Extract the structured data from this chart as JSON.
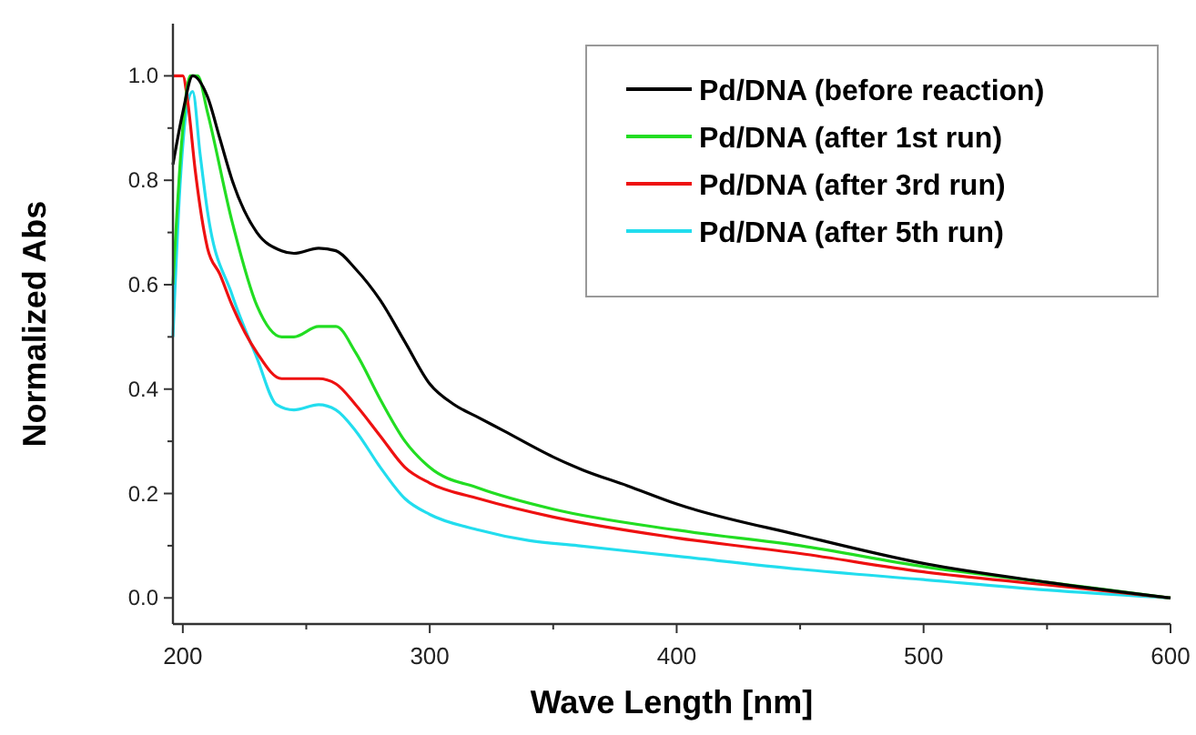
{
  "chart_data": {
    "type": "line",
    "xlabel": "Wave Length [nm]",
    "ylabel": "Normalized Abs",
    "xlim": [
      196,
      600
    ],
    "ylim": [
      -0.05,
      1.1
    ],
    "xticks": [
      200,
      {
        "value": 250,
        "label": null
      },
      300,
      {
        "value": 350,
        "label": null
      },
      400,
      {
        "value": 450,
        "label": null
      },
      500,
      {
        "value": 550,
        "label": null
      },
      600
    ],
    "yticks": [
      {
        "value": 0,
        "label": "0.0"
      },
      {
        "value": 0.1,
        "label": null
      },
      0.2,
      {
        "value": 0.3,
        "label": null
      },
      0.4,
      {
        "value": 0.5,
        "label": null
      },
      0.6,
      {
        "value": 0.7,
        "label": null
      },
      0.8,
      {
        "value": 0.9,
        "label": null
      },
      {
        "value": 1,
        "label": "1.0"
      }
    ],
    "grid": false,
    "legend": "top right",
    "marker": "none",
    "line_style": "solid",
    "series": [
      {
        "name": "Pd/DNA (before reaction)",
        "color": "#000000",
        "x": [
          196,
          200,
          204,
          210,
          215,
          220,
          230,
          240,
          245,
          255,
          262,
          270,
          280,
          290,
          300,
          310,
          320,
          330,
          350,
          362,
          380,
          400,
          450,
          500,
          550,
          600
        ],
        "values": [
          0.83,
          0.93,
          1.0,
          0.96,
          0.88,
          0.8,
          0.7,
          0.665,
          0.66,
          0.67,
          0.665,
          0.63,
          0.57,
          0.49,
          0.41,
          0.37,
          0.345,
          0.32,
          0.27,
          0.245,
          0.215,
          0.18,
          0.12,
          0.066,
          0.03,
          0
        ]
      },
      {
        "name": "Pd/DNA (after 1st run)",
        "color": "#22dd22",
        "x": [
          196,
          200,
          203,
          206,
          210,
          220,
          230,
          240,
          245,
          255,
          262,
          270,
          280,
          290,
          300,
          320,
          350,
          400,
          450,
          500,
          550,
          600
        ],
        "values": [
          0.6,
          0.9,
          1.0,
          1.0,
          0.93,
          0.72,
          0.56,
          0.5,
          0.5,
          0.52,
          0.52,
          0.47,
          0.38,
          0.3,
          0.25,
          0.21,
          0.17,
          0.13,
          0.1,
          0.06,
          0.03,
          0
        ]
      },
      {
        "name": "Pd/DNA (after 3rd run)",
        "color": "#ee1111",
        "x": [
          196,
          200,
          202,
          205,
          210,
          215,
          220,
          230,
          240,
          255,
          262,
          270,
          280,
          290,
          300,
          320,
          350,
          400,
          450,
          500,
          550,
          600
        ],
        "values": [
          1.0,
          1.0,
          0.95,
          0.82,
          0.67,
          0.62,
          0.56,
          0.47,
          0.42,
          0.42,
          0.41,
          0.37,
          0.31,
          0.25,
          0.22,
          0.19,
          0.155,
          0.115,
          0.085,
          0.05,
          0.025,
          0
        ]
      },
      {
        "name": "Pd/DNA (after 5th run)",
        "color": "#22ddee",
        "x": [
          196,
          199,
          202,
          204,
          207,
          210,
          220,
          230,
          238,
          245,
          255,
          262,
          270,
          280,
          290,
          300,
          320,
          340,
          360,
          400,
          450,
          500,
          550,
          600
        ],
        "values": [
          0.5,
          0.8,
          0.95,
          0.97,
          0.85,
          0.74,
          0.58,
          0.46,
          0.37,
          0.36,
          0.37,
          0.36,
          0.32,
          0.25,
          0.19,
          0.16,
          0.13,
          0.11,
          0.1,
          0.08,
          0.055,
          0.035,
          0.015,
          0
        ]
      }
    ]
  }
}
